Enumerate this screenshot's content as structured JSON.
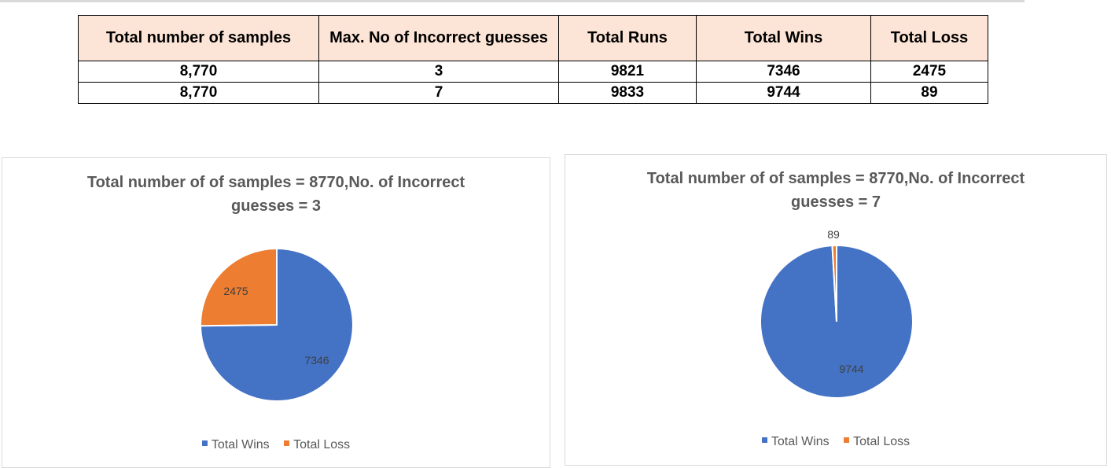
{
  "table": {
    "headers": [
      "Total number of samples",
      "Max. No of Incorrect guesses",
      "Total Runs",
      "Total Wins",
      "Total Loss"
    ],
    "rows": [
      [
        "8,770",
        "3",
        "9821",
        "7346",
        "2475"
      ],
      [
        "8,770",
        "7",
        "9833",
        "9744",
        "89"
      ]
    ]
  },
  "chart_data": [
    {
      "type": "pie",
      "title_lines": [
        "Total number of of samples = 8770,No. of Incorrect",
        "guesses = 3"
      ],
      "categories": [
        "Total Wins",
        "Total Loss"
      ],
      "values": [
        7346,
        2475
      ],
      "colors": [
        "#4472c4",
        "#ed7d31"
      ],
      "data_labels": [
        "7346",
        "2475"
      ],
      "legend_position": "bottom"
    },
    {
      "type": "pie",
      "title_lines": [
        "Total number of of samples = 8770,No. of Incorrect",
        "guesses = 7"
      ],
      "categories": [
        "Total Wins",
        "Total Loss"
      ],
      "values": [
        9744,
        89
      ],
      "colors": [
        "#4472c4",
        "#ed7d31"
      ],
      "data_labels": [
        "9744",
        "89"
      ],
      "legend_position": "bottom"
    }
  ]
}
